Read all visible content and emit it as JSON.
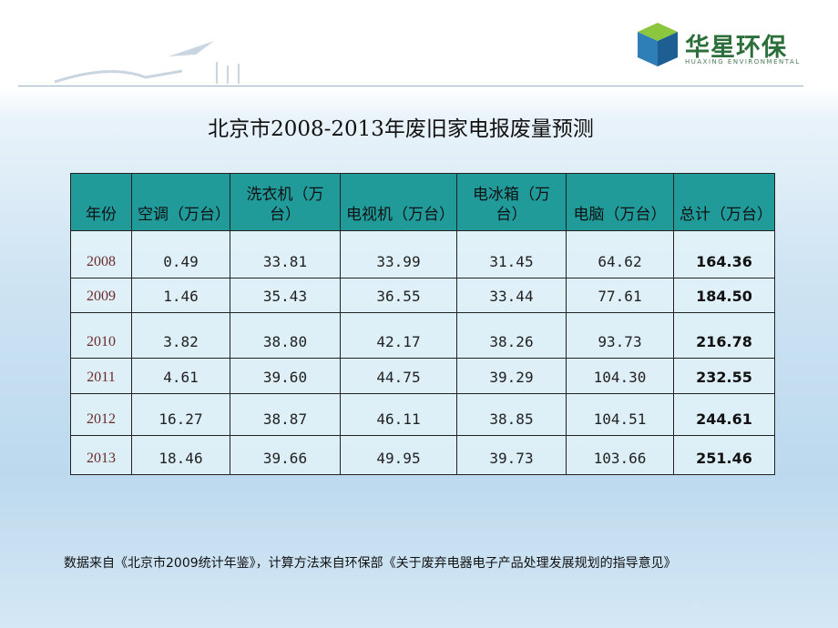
{
  "header": {
    "logo": "华星环保",
    "logo_sub": "HUAXING ENVIRONMENTAL"
  },
  "title": "北京市2008-2013年废旧家电报废量预测",
  "table": {
    "columns": [
      "年份",
      "空调（万台）",
      "洗衣机（万台）",
      "电视机（万台）",
      "电冰箱（万台）",
      "电脑（万台）",
      "总计（万台）"
    ],
    "rows": [
      [
        "2008",
        "0.49",
        "33.81",
        "33.99",
        "31.45",
        "64.62",
        "164.36"
      ],
      [
        "2009",
        "1.46",
        "35.43",
        "36.55",
        "33.44",
        "77.61",
        "184.50"
      ],
      [
        "2010",
        "3.82",
        "38.80",
        "42.17",
        "38.26",
        "93.73",
        "216.78"
      ],
      [
        "2011",
        "4.61",
        "39.60",
        "44.75",
        "39.29",
        "104.30",
        "232.55"
      ],
      [
        "2012",
        "16.27",
        "38.87",
        "46.11",
        "38.85",
        "104.51",
        "244.61"
      ],
      [
        "2013",
        "18.46",
        "39.66",
        "49.95",
        "39.73",
        "103.66",
        "251.46"
      ]
    ]
  },
  "note": "数据来自《北京市2009统计年鉴》，计算方法来自环保部《关于废弃电器电子产品处理发展规划的指导意见》"
}
